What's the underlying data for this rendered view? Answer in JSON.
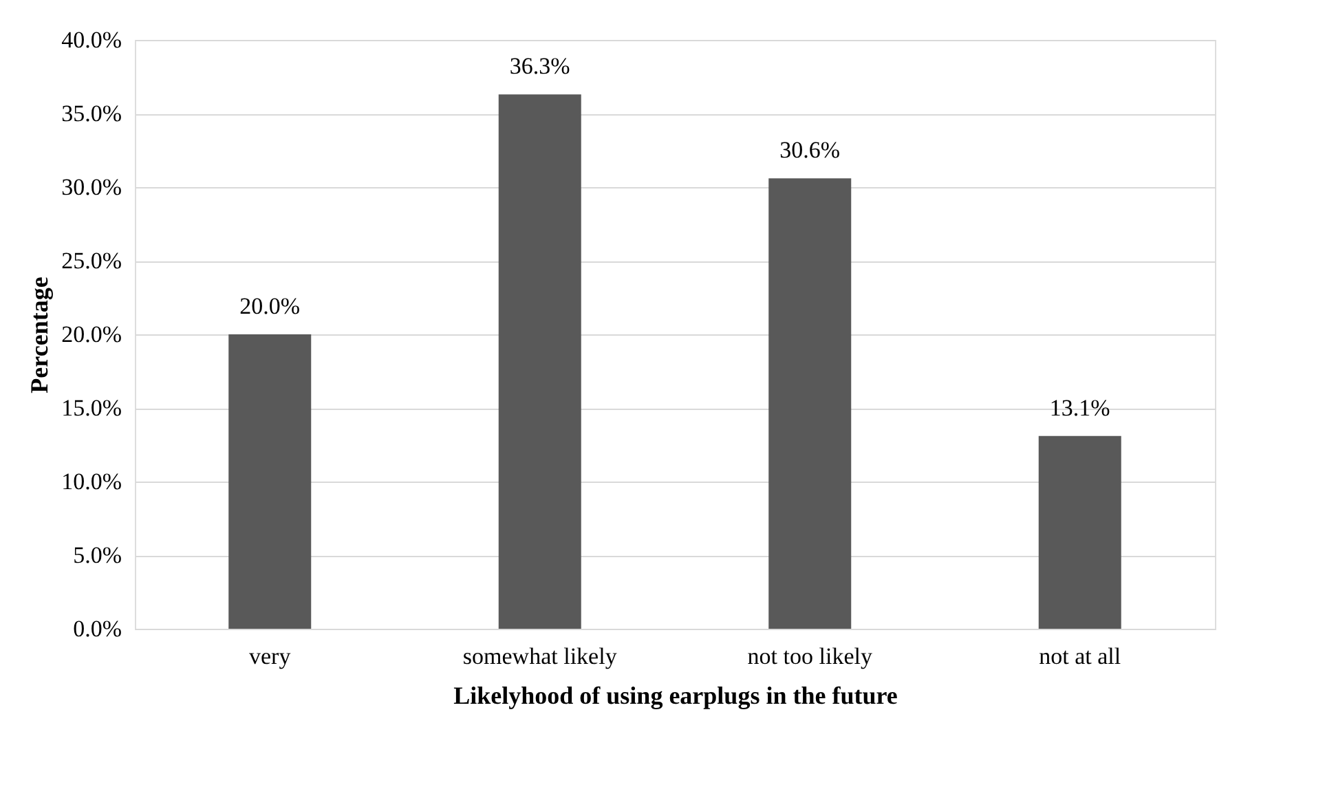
{
  "chart_data": {
    "type": "bar",
    "xlabel": "Likelyhood of using earplugs in the future",
    "ylabel": "Percentage",
    "categories": [
      "very",
      "somewhat likely",
      "not too likely",
      "not at all"
    ],
    "values": [
      20.0,
      36.3,
      30.6,
      13.1
    ],
    "value_labels": [
      "20.0%",
      "36.3%",
      "30.6%",
      "13.1%"
    ],
    "color": "#595959",
    "ylim": [
      0,
      40
    ],
    "yticks": [
      {
        "value": 0,
        "label": "0.0%"
      },
      {
        "value": 5,
        "label": "5.0%"
      },
      {
        "value": 10,
        "label": "10.0%"
      },
      {
        "value": 15,
        "label": "15.0%"
      },
      {
        "value": 20,
        "label": "20.0%"
      },
      {
        "value": 25,
        "label": "25.0%"
      },
      {
        "value": 30,
        "label": "30.0%"
      },
      {
        "value": 35,
        "label": "35.0%"
      },
      {
        "value": 40,
        "label": "40.0%"
      }
    ],
    "grid": "y"
  }
}
